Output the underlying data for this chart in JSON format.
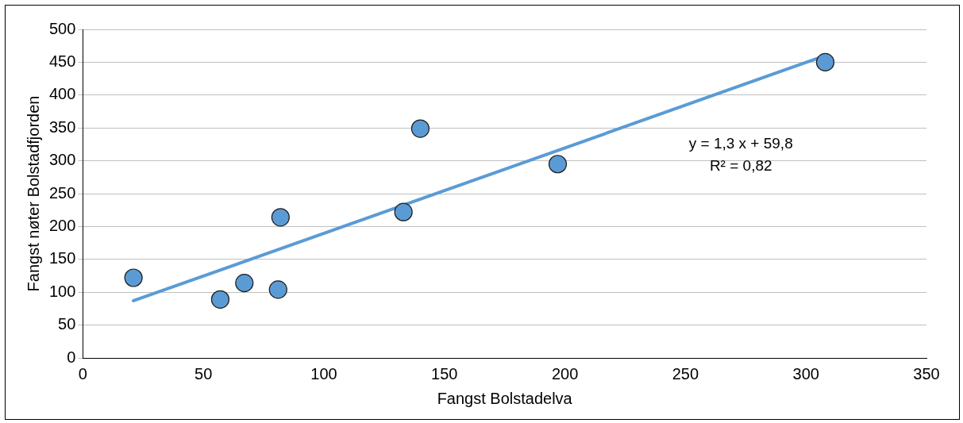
{
  "chart_data": {
    "type": "scatter",
    "xlabel": "Fangst Bolstadelva",
    "ylabel": "Fangst nøter Bolstadfjorden",
    "xlim": [
      0,
      350
    ],
    "xticks": [
      0,
      50,
      100,
      150,
      200,
      250,
      300,
      350
    ],
    "ylim": [
      0,
      500
    ],
    "yticks": [
      0,
      50,
      100,
      150,
      200,
      250,
      300,
      350,
      400,
      450,
      500
    ],
    "grid": "y",
    "legend": false,
    "marker": "circle",
    "series": [
      {
        "color": "#5b9bd5",
        "x": [
          21,
          57,
          67,
          81,
          82,
          133,
          140,
          197,
          308
        ],
        "values": [
          122,
          89,
          114,
          104,
          214,
          222,
          349,
          295,
          450
        ]
      },
      {
        "type": "line",
        "color": "#5b9bd5",
        "line_style": "solid",
        "marker": "none",
        "x": [
          21,
          308
        ],
        "values": [
          87,
          460
        ]
      }
    ],
    "annotations": [
      "y = 1,3 x + 59,8",
      "R² = 0,82"
    ]
  }
}
